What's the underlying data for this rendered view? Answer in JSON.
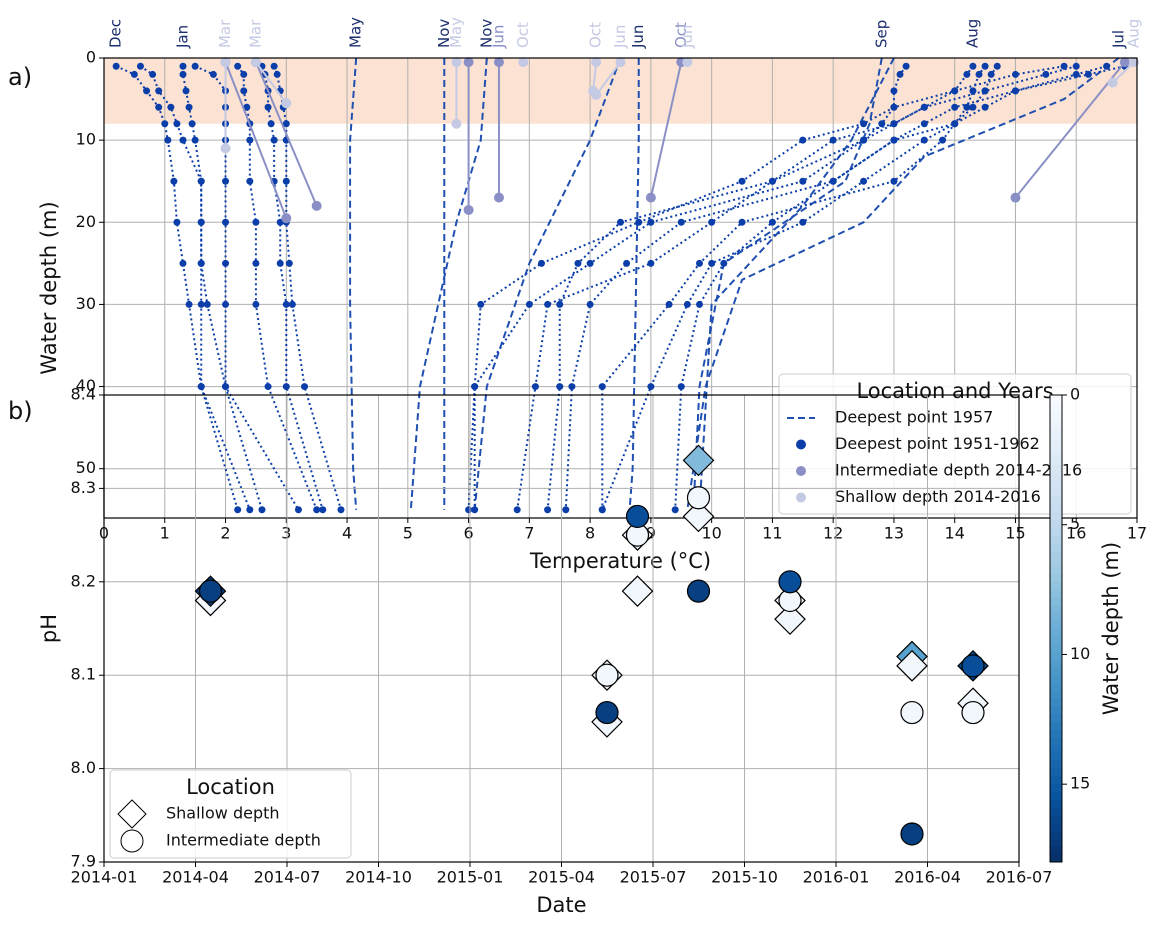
{
  "chart_data": [
    {
      "type": "line",
      "panel_label": "a)",
      "x_label": "Temperature (°C)",
      "y_label": "Water depth (m)",
      "xlim": [
        0,
        17
      ],
      "xticks": [
        0,
        1,
        2,
        3,
        4,
        5,
        6,
        7,
        8,
        9,
        10,
        11,
        12,
        13,
        14,
        15,
        16,
        17
      ],
      "ylim": [
        56,
        0
      ],
      "yticks": [
        0,
        10,
        20,
        30,
        40,
        50
      ],
      "grid": true,
      "highlight_depth": [
        0,
        8
      ],
      "highlight_color": "#fbe2d2",
      "legend": "lower right",
      "legend_title": "Location and Years",
      "series": [
        {
          "name": "Deepest point 1957",
          "color": "#1f4fb0",
          "line_style": "dashed",
          "markers": false,
          "profiles": [
            {
              "label": "May",
              "x": [
                4.15,
                4.1,
                4.05,
                4.05,
                4.1,
                4.15
              ],
              "y": [
                0,
                5,
                10,
                30,
                50,
                55
              ]
            },
            {
              "label": "Nov",
              "x": [
                5.6,
                5.6,
                5.6,
                5.6
              ],
              "y": [
                0,
                20,
                40,
                55
              ]
            },
            {
              "label": "Nov",
              "x": [
                6.3,
                6.2,
                5.8,
                5.5,
                5.2,
                5.05
              ],
              "y": [
                0,
                10,
                20,
                30,
                40,
                55
              ]
            },
            {
              "label": "Jun",
              "x": [
                8.8,
                8.8,
                8.75,
                8.7,
                8.65
              ],
              "y": [
                0,
                10,
                30,
                50,
                55
              ]
            },
            {
              "x": [
                8.5,
                8.0,
                7.0,
                6.3,
                6.1
              ],
              "y": [
                0,
                10,
                25,
                40,
                55
              ]
            },
            {
              "label": "Sep",
              "x": [
                12.8,
                12.6,
                12.2,
                10.2,
                9.8,
                9.7
              ],
              "y": [
                0,
                8,
                15,
                25,
                40,
                55
              ]
            },
            {
              "x": [
                13.0,
                12.3,
                11.5,
                10.0,
                9.8
              ],
              "y": [
                0,
                10,
                18,
                30,
                55
              ]
            },
            {
              "label": "Jul",
              "x": [
                16.7,
                15.8,
                13.5,
                12.5,
                10.5,
                9.9,
                9.6
              ],
              "y": [
                0,
                5,
                12,
                20,
                27,
                40,
                55
              ]
            }
          ]
        },
        {
          "name": "Deepest point 1951-1962",
          "color": "#0b3ea8",
          "line_style": "dotted",
          "markers": true,
          "profiles": [
            {
              "label": "Dec",
              "x": [
                0.2,
                0.5,
                0.7,
                0.9,
                1.0,
                1.05,
                1.15,
                1.2,
                1.3,
                1.4,
                1.6,
                2.2
              ],
              "y": [
                1,
                2,
                4,
                6,
                8,
                10,
                15,
                20,
                25,
                30,
                40,
                55
              ]
            },
            {
              "x": [
                0.6,
                0.8,
                0.9,
                1.1,
                1.2,
                1.3,
                1.6,
                1.6,
                1.6,
                1.6,
                1.6,
                2.4
              ],
              "y": [
                1,
                2,
                4,
                6,
                8,
                10,
                15,
                20,
                25,
                30,
                40,
                55
              ]
            },
            {
              "label": "Jan",
              "x": [
                1.3,
                1.3,
                1.35,
                1.4,
                1.45,
                1.5,
                1.6,
                1.6,
                1.6,
                1.7,
                2.0,
                2.6
              ],
              "y": [
                1,
                2,
                4,
                6,
                8,
                10,
                15,
                20,
                25,
                30,
                40,
                55
              ]
            },
            {
              "x": [
                1.5,
                1.8,
                2.0,
                2.0,
                2.0,
                2.0,
                2.0,
                2.0,
                2.0,
                2.0,
                2.0,
                3.2
              ],
              "y": [
                1,
                2,
                4,
                6,
                8,
                10,
                15,
                20,
                25,
                30,
                40,
                55
              ]
            },
            {
              "x": [
                2.2,
                2.3,
                2.3,
                2.35,
                2.4,
                2.4,
                2.4,
                2.5,
                2.5,
                2.5,
                2.7,
                3.5
              ],
              "y": [
                1,
                2,
                4,
                6,
                8,
                10,
                15,
                20,
                25,
                30,
                40,
                55
              ]
            },
            {
              "x": [
                2.6,
                2.65,
                2.7,
                2.7,
                2.75,
                2.8,
                2.8,
                2.9,
                2.9,
                3.0,
                3.0,
                3.6
              ],
              "y": [
                1,
                2,
                4,
                6,
                8,
                10,
                15,
                20,
                25,
                30,
                40,
                55
              ]
            },
            {
              "x": [
                2.8,
                2.85,
                2.9,
                2.95,
                3.0,
                3.0,
                3.0,
                3.0,
                3.05,
                3.1,
                3.3,
                3.9
              ],
              "y": [
                1,
                2,
                4,
                6,
                8,
                10,
                15,
                20,
                25,
                30,
                40,
                55
              ]
            },
            {
              "x": [
                16.0,
                15.5,
                14.5,
                13.5,
                13.0,
                12.5,
                11.5,
                9.0,
                8.0,
                7.0,
                6.1,
                6.1
              ],
              "y": [
                1,
                2,
                4,
                6,
                8,
                10,
                15,
                20,
                25,
                30,
                40,
                55
              ]
            },
            {
              "label": "Aug",
              "x": [
                14.3,
                14.2,
                14.0,
                13.5,
                13.0,
                12.0,
                11.0,
                10.0,
                9.0,
                7.3,
                7.1,
                6.8
              ],
              "y": [
                1,
                2,
                4,
                6,
                8,
                10,
                15,
                20,
                25,
                30,
                40,
                55
              ]
            },
            {
              "x": [
                16.5,
                16.0,
                15.0,
                14.5,
                14.0,
                13.5,
                12.5,
                11.5,
                10.0,
                9.6,
                9.0,
                8.2
              ],
              "y": [
                1,
                2,
                4,
                6,
                8,
                10,
                15,
                20,
                25,
                30,
                40,
                55
              ]
            },
            {
              "x": [
                13.2,
                13.1,
                13.0,
                13.0,
                12.8,
                12.5,
                11.0,
                8.5,
                7.8,
                7.5,
                7.5,
                7.3
              ],
              "y": [
                1,
                2,
                4,
                6,
                8,
                10,
                15,
                20,
                25,
                30,
                40,
                55
              ]
            },
            {
              "x": [
                14.5,
                14.4,
                14.3,
                14.2,
                14.0,
                13.8,
                13.0,
                10.5,
                9.8,
                9.3,
                8.2,
                8.2
              ],
              "y": [
                1,
                2,
                4,
                6,
                8,
                10,
                15,
                20,
                25,
                30,
                40,
                55
              ]
            },
            {
              "x": [
                15.8,
                15.0,
                14.0,
                13.0,
                12.5,
                11.5,
                10.5,
                8.8,
                7.2,
                6.2,
                6.1,
                6.0
              ],
              "y": [
                1,
                2,
                4,
                6,
                8,
                10,
                15,
                20,
                25,
                30,
                40,
                55
              ]
            },
            {
              "x": [
                14.7,
                14.6,
                14.5,
                14.3,
                14.0,
                13.0,
                12.0,
                11.0,
                10.2,
                9.8,
                9.5,
                9.4
              ],
              "y": [
                1,
                2,
                4,
                6,
                8,
                10,
                15,
                20,
                25,
                30,
                40,
                55
              ]
            },
            {
              "x": [
                16.8,
                16.2,
                15.0,
                14.0,
                13.5,
                13.0,
                12.0,
                9.5,
                8.6,
                8.0,
                7.7,
                7.6
              ],
              "y": [
                1,
                2,
                4,
                6,
                8,
                10,
                15,
                20,
                25,
                30,
                40,
                55
              ]
            }
          ]
        },
        {
          "name": "Intermediate depth 2014-2016",
          "color": "#8a90c6",
          "line_style": "solid",
          "markers": true,
          "profiles": [
            {
              "x": [
                2.5,
                3.5
              ],
              "y": [
                0.5,
                18
              ]
            },
            {
              "x": [
                2.0,
                3.0
              ],
              "y": [
                0.5,
                19.5
              ]
            },
            {
              "x": [
                6.0,
                6.0
              ],
              "y": [
                0.5,
                18.5
              ]
            },
            {
              "label": "Jun",
              "x": [
                6.5,
                6.5
              ],
              "y": [
                0.5,
                17
              ]
            },
            {
              "label": "Oct",
              "x": [
                9.5,
                9.0
              ],
              "y": [
                0.5,
                17
              ]
            },
            {
              "x": [
                16.8,
                15.0
              ],
              "y": [
                0.5,
                17
              ]
            }
          ]
        },
        {
          "name": "Shallow depth 2014-2016",
          "color": "#c4c9e4",
          "line_style": "solid",
          "markers": true,
          "profiles": [
            {
              "label": "Mar",
              "x": [
                2.0,
                2.0
              ],
              "y": [
                0.5,
                11
              ]
            },
            {
              "label": "Mar",
              "x": [
                2.5,
                3.0
              ],
              "y": [
                0.5,
                5.5
              ]
            },
            {
              "label": "May",
              "x": [
                5.8,
                5.8
              ],
              "y": [
                0.5,
                8
              ]
            },
            {
              "label": "Oct",
              "x": [
                6.9
              ],
              "y": [
                0.5
              ]
            },
            {
              "label": "Oct",
              "x": [
                8.1,
                8.05
              ],
              "y": [
                0.5,
                4
              ]
            },
            {
              "label": "Jun",
              "x": [
                8.5,
                8.1
              ],
              "y": [
                0.5,
                4.5
              ]
            },
            {
              "label": "Jun",
              "x": [
                9.6
              ],
              "y": [
                0.5
              ]
            },
            {
              "label": "Aug",
              "x": [
                16.95,
                16.6
              ],
              "y": [
                0.5,
                3
              ]
            }
          ]
        }
      ]
    },
    {
      "type": "scatter",
      "panel_label": "b)",
      "x_label": "Date",
      "y_label": "pH",
      "xlim": [
        "2014-01",
        "2016-07"
      ],
      "xticks": [
        "2014-01",
        "2014-04",
        "2014-07",
        "2014-10",
        "2015-01",
        "2015-04",
        "2015-07",
        "2015-10",
        "2016-01",
        "2016-04",
        "2016-07"
      ],
      "ylim": [
        7.9,
        8.4
      ],
      "yticks": [
        7.9,
        {
          "value": 8,
          "label": "8.0"
        },
        8.1,
        8.2,
        8.3,
        8.4
      ],
      "grid": true,
      "legend": "lower left",
      "legend_title": "Location",
      "colorbar": {
        "label": "Water depth (m)",
        "lim": [
          0,
          18
        ],
        "ticks": [
          0,
          5,
          10,
          15
        ],
        "colormap": "Blues"
      },
      "series": [
        {
          "name": "Shallow depth",
          "marker": "diamond",
          "x": [
            "2014-04",
            "2014-04",
            "2015-05",
            "2015-05",
            "2015-06",
            "2015-06",
            "2015-08",
            "2015-08",
            "2015-11",
            "2015-11",
            "2016-03",
            "2016-03",
            "2016-05",
            "2016-05"
          ],
          "values": [
            8.18,
            8.19,
            8.1,
            8.05,
            8.25,
            8.19,
            8.33,
            8.27,
            8.18,
            8.16,
            8.12,
            8.11,
            8.11,
            8.07
          ],
          "depth": [
            0.5,
            17,
            0.5,
            0.5,
            0.5,
            0.5,
            8,
            0.5,
            0.5,
            0.5,
            10,
            0.5,
            16,
            0.5
          ]
        },
        {
          "name": "Intermediate depth",
          "marker": "circle",
          "x": [
            "2014-04",
            "2015-05",
            "2015-05",
            "2015-06",
            "2015-06",
            "2015-08",
            "2015-08",
            "2015-11",
            "2015-11",
            "2016-03",
            "2016-03",
            "2016-05",
            "2016-05"
          ],
          "values": [
            8.19,
            8.1,
            8.06,
            8.25,
            8.27,
            8.29,
            8.19,
            8.18,
            8.2,
            8.06,
            7.93,
            8.06,
            8.11
          ],
          "depth": [
            17,
            0.5,
            17,
            0.5,
            16,
            0.5,
            17,
            0.5,
            16,
            0.5,
            17,
            0.5,
            16
          ]
        }
      ]
    }
  ]
}
